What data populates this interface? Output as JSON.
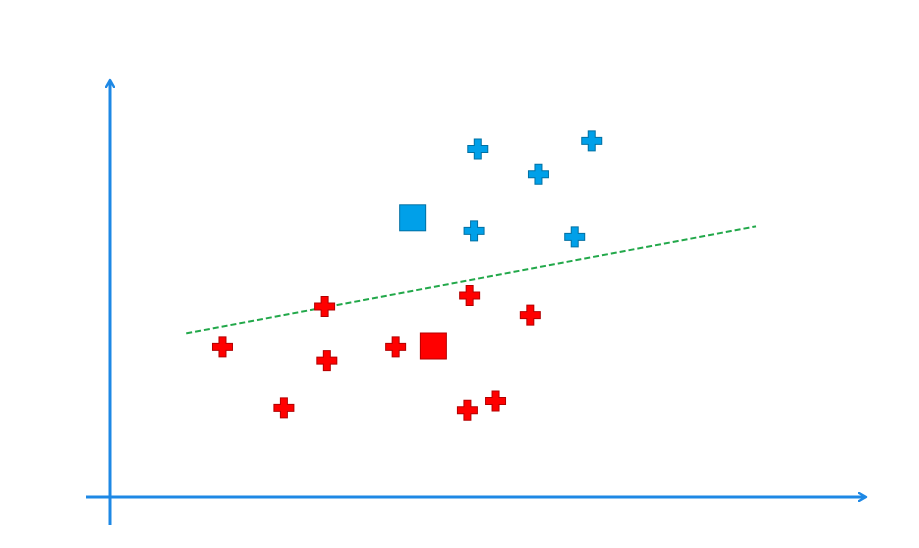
{
  "chart_data": {
    "type": "scatter",
    "xlim": [
      0,
      100
    ],
    "ylim": [
      0,
      100
    ],
    "grid": false,
    "axis_color": "#1E88E5",
    "series": [
      {
        "marker": "plus",
        "color": "#00A0E9",
        "points": [
          [
            49.7,
            85.5
          ],
          [
            57.9,
            79.3
          ],
          [
            65.1,
            87.5
          ],
          [
            49.2,
            65.4
          ],
          [
            62.8,
            63.9
          ]
        ]
      },
      {
        "marker": "plus",
        "color": "#FF0000",
        "points": [
          [
            15.2,
            36.9
          ],
          [
            29.0,
            46.8
          ],
          [
            29.3,
            33.5
          ],
          [
            38.6,
            36.9
          ],
          [
            48.6,
            49.5
          ],
          [
            56.8,
            44.7
          ],
          [
            23.5,
            21.9
          ],
          [
            48.3,
            21.3
          ],
          [
            52.1,
            23.6
          ]
        ]
      }
    ],
    "centroids": [
      {
        "color": "#00A0E9",
        "point": [
          40.9,
          68.6
        ]
      },
      {
        "color": "#FF0000",
        "point": [
          43.7,
          37.1
        ]
      }
    ],
    "boundary": {
      "color": "#22A84A",
      "style": "dashed",
      "from": [
        10.3,
        40.2
      ],
      "to": [
        87.3,
        66.5
      ]
    }
  }
}
